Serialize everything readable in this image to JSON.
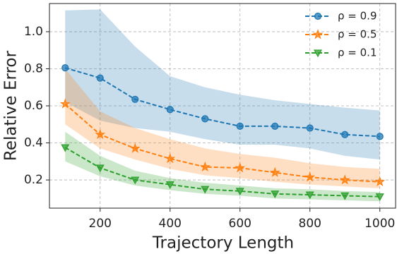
{
  "chart_data": {
    "type": "line",
    "xlabel": "Trajectory Length",
    "ylabel": "Relative Error",
    "x": [
      100,
      200,
      300,
      400,
      500,
      600,
      700,
      800,
      900,
      1000
    ],
    "series": [
      {
        "name": "ρ = 0.9",
        "color": "#1f77b4",
        "marker": "circle",
        "values": [
          0.805,
          0.75,
          0.635,
          0.58,
          0.53,
          0.49,
          0.49,
          0.48,
          0.445,
          0.435
        ],
        "upper": [
          1.115,
          1.12,
          0.92,
          0.76,
          0.7,
          0.66,
          0.63,
          0.61,
          0.59,
          0.575
        ],
        "lower": [
          0.62,
          0.52,
          0.48,
          0.46,
          0.42,
          0.39,
          0.39,
          0.37,
          0.33,
          0.31
        ]
      },
      {
        "name": "ρ = 0.5",
        "color": "#ff7f0e",
        "marker": "star",
        "values": [
          0.61,
          0.445,
          0.37,
          0.315,
          0.27,
          0.265,
          0.24,
          0.215,
          0.2,
          0.19
        ],
        "upper": [
          0.8,
          0.57,
          0.48,
          0.42,
          0.37,
          0.34,
          0.32,
          0.29,
          0.27,
          0.26
        ],
        "lower": [
          0.5,
          0.37,
          0.31,
          0.26,
          0.225,
          0.21,
          0.19,
          0.175,
          0.165,
          0.155
        ]
      },
      {
        "name": "ρ = 0.1",
        "color": "#2ca02c",
        "marker": "triangle-down",
        "values": [
          0.375,
          0.265,
          0.2,
          0.175,
          0.15,
          0.14,
          0.125,
          0.12,
          0.115,
          0.11
        ],
        "upper": [
          0.46,
          0.33,
          0.25,
          0.21,
          0.185,
          0.17,
          0.155,
          0.15,
          0.14,
          0.135
        ],
        "lower": [
          0.3,
          0.22,
          0.17,
          0.145,
          0.125,
          0.115,
          0.1,
          0.095,
          0.09,
          0.085
        ]
      }
    ],
    "xlim": [
      55,
      1045
    ],
    "ylim": [
      0.048,
      1.152
    ],
    "xticks": [
      200,
      400,
      600,
      800,
      1000
    ],
    "yticks": [
      0.2,
      0.4,
      0.6,
      0.8,
      {
        "value": 1,
        "label": "1.0"
      }
    ],
    "grid": true,
    "legend": "upper right"
  }
}
